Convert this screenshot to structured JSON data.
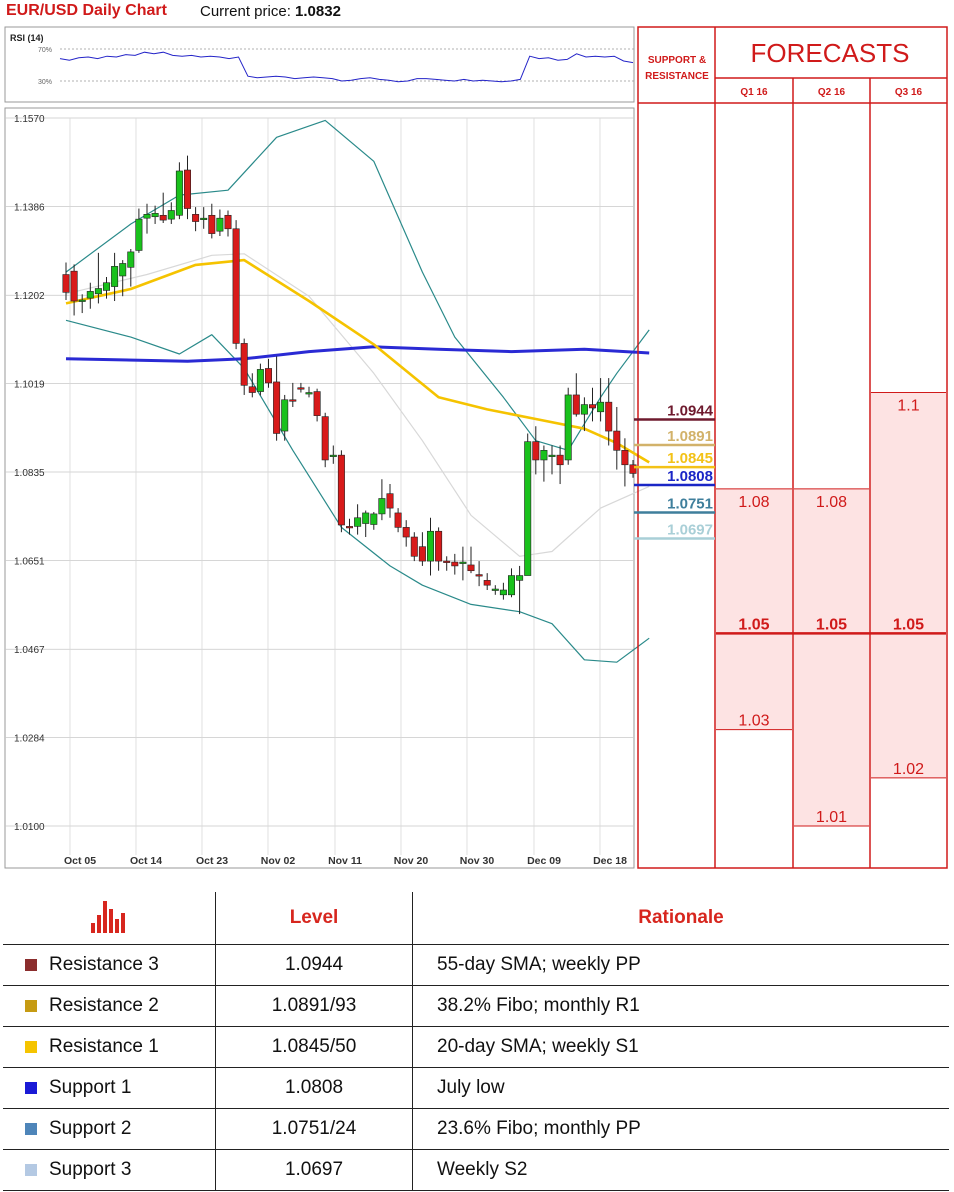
{
  "header": {
    "title": "EUR/USD Daily Chart",
    "price_label": "Current price:",
    "price_value": "1.0832"
  },
  "chart_data": {
    "type": "candlestick",
    "rsi": {
      "label": "RSI (14)",
      "levels": [
        "70%",
        "30%"
      ],
      "values": [
        58,
        56,
        59,
        60,
        58,
        61,
        60,
        63,
        62,
        66,
        64,
        66,
        62,
        61,
        62,
        60,
        61,
        60,
        58,
        60,
        36,
        34,
        35,
        36,
        35,
        33,
        34,
        35,
        34,
        33,
        30,
        31,
        33,
        34,
        32,
        31,
        29,
        30,
        33,
        33,
        32,
        31,
        30,
        32,
        30,
        31,
        30,
        29,
        30,
        32,
        61,
        58,
        59,
        56,
        57,
        64,
        60,
        61,
        60,
        61,
        55,
        53
      ]
    },
    "y_ticks": [
      "1.1570",
      "1.1386",
      "1.1202",
      "1.1019",
      "1.0835",
      "1.0651",
      "1.0467",
      "1.0284",
      "1.0100"
    ],
    "ylim": [
      1.01,
      1.157
    ],
    "x_ticks": [
      "Oct 05",
      "Oct 14",
      "Oct 23",
      "Nov 02",
      "Nov 11",
      "Nov 20",
      "Nov 30",
      "Dec 09",
      "Dec 18"
    ],
    "candles": [
      [
        1.1245,
        1.127,
        1.1192,
        1.1208
      ],
      [
        1.1252,
        1.1266,
        1.116,
        1.119
      ],
      [
        1.119,
        1.1204,
        1.1165,
        1.1192
      ],
      [
        1.1196,
        1.1228,
        1.1174,
        1.121
      ],
      [
        1.1205,
        1.129,
        1.1185,
        1.1216
      ],
      [
        1.1212,
        1.124,
        1.1195,
        1.1228
      ],
      [
        1.122,
        1.129,
        1.119,
        1.1262
      ],
      [
        1.1242,
        1.1275,
        1.12,
        1.1268
      ],
      [
        1.126,
        1.1298,
        1.122,
        1.1292
      ],
      [
        1.1295,
        1.1382,
        1.129,
        1.136
      ],
      [
        1.1362,
        1.1392,
        1.133,
        1.137
      ],
      [
        1.1365,
        1.1388,
        1.135,
        1.1372
      ],
      [
        1.1368,
        1.1415,
        1.1352,
        1.1358
      ],
      [
        1.136,
        1.1395,
        1.135,
        1.1378
      ],
      [
        1.1368,
        1.1478,
        1.136,
        1.146
      ],
      [
        1.1462,
        1.1492,
        1.136,
        1.1382
      ],
      [
        1.137,
        1.1385,
        1.1335,
        1.1355
      ],
      [
        1.136,
        1.1385,
        1.134,
        1.1362
      ],
      [
        1.1368,
        1.1392,
        1.132,
        1.133
      ],
      [
        1.1335,
        1.138,
        1.1325,
        1.1362
      ],
      [
        1.1368,
        1.1378,
        1.1324,
        1.134
      ],
      [
        1.134,
        1.1358,
        1.109,
        1.1102
      ],
      [
        1.1102,
        1.1112,
        1.0995,
        1.1015
      ],
      [
        1.1012,
        1.104,
        1.099,
        1.1
      ],
      [
        1.1002,
        1.106,
        1.0994,
        1.1048
      ],
      [
        1.105,
        1.107,
        1.101,
        1.102
      ],
      [
        1.1022,
        1.1075,
        1.09,
        1.0915
      ],
      [
        1.092,
        1.0995,
        1.09,
        1.0985
      ],
      [
        1.0985,
        1.102,
        1.097,
        1.0982
      ],
      [
        1.101,
        1.102,
        1.1,
        1.1008
      ],
      [
        1.0998,
        1.1012,
        1.099,
        1.1
      ],
      [
        1.1002,
        1.1008,
        1.094,
        1.0952
      ],
      [
        1.095,
        1.0958,
        1.0845,
        1.086
      ],
      [
        1.087,
        1.089,
        1.0852,
        1.087
      ],
      [
        1.087,
        1.088,
        1.071,
        1.0725
      ],
      [
        1.0722,
        1.0738,
        1.0705,
        1.072
      ],
      [
        1.0722,
        1.0768,
        1.0705,
        1.074
      ],
      [
        1.0728,
        1.0755,
        1.07,
        1.075
      ],
      [
        1.0726,
        1.0752,
        1.0715,
        1.0748
      ],
      [
        1.0748,
        1.082,
        1.0735,
        1.078
      ],
      [
        1.079,
        1.081,
        1.074,
        1.076
      ],
      [
        1.075,
        1.076,
        1.071,
        1.072
      ],
      [
        1.072,
        1.0735,
        1.068,
        1.07
      ],
      [
        1.07,
        1.071,
        1.065,
        1.066
      ],
      [
        1.068,
        1.071,
        1.064,
        1.065
      ],
      [
        1.065,
        1.074,
        1.062,
        1.0712
      ],
      [
        1.0712,
        1.072,
        1.063,
        1.065
      ],
      [
        1.065,
        1.066,
        1.063,
        1.0648
      ],
      [
        1.0648,
        1.0665,
        1.0622,
        1.064
      ],
      [
        1.0645,
        1.068,
        1.061,
        1.0648
      ],
      [
        1.0642,
        1.068,
        1.0625,
        1.063
      ],
      [
        1.0622,
        1.065,
        1.0598,
        1.062
      ],
      [
        1.061,
        1.0625,
        1.059,
        1.06
      ],
      [
        1.0592,
        1.06,
        1.058,
        1.0592
      ],
      [
        1.058,
        1.0605,
        1.057,
        1.059
      ],
      [
        1.058,
        1.0635,
        1.0575,
        1.062
      ],
      [
        1.061,
        1.064,
        1.054,
        1.062
      ],
      [
        1.062,
        1.0915,
        1.062,
        1.0898
      ],
      [
        1.0898,
        1.093,
        1.083,
        1.086
      ],
      [
        1.086,
        1.089,
        1.0815,
        1.088
      ],
      [
        1.087,
        1.089,
        1.083,
        1.087
      ],
      [
        1.087,
        1.089,
        1.081,
        1.085
      ],
      [
        1.086,
        1.101,
        1.085,
        1.0995
      ],
      [
        1.0995,
        1.104,
        1.095,
        1.0955
      ],
      [
        1.0955,
        1.099,
        1.092,
        1.0975
      ],
      [
        1.0975,
        1.101,
        1.094,
        1.0968
      ],
      [
        1.096,
        1.103,
        1.094,
        1.098
      ],
      [
        1.098,
        1.103,
        1.089,
        1.092
      ],
      [
        1.092,
        1.097,
        1.084,
        1.088
      ],
      [
        1.088,
        1.0905,
        1.0805,
        1.085
      ],
      [
        1.085,
        1.086,
        1.0823,
        1.0832
      ]
    ],
    "sma_yellow": [
      [
        0,
        1.1185
      ],
      [
        8,
        1.1215
      ],
      [
        16,
        1.1265
      ],
      [
        22,
        1.1275
      ],
      [
        30,
        1.119
      ],
      [
        38,
        1.11
      ],
      [
        46,
        1.099
      ],
      [
        52,
        1.0965
      ],
      [
        58,
        1.0945
      ],
      [
        64,
        1.0925
      ],
      [
        68,
        1.0895
      ],
      [
        72,
        1.0855
      ]
    ],
    "sma_blue": [
      [
        0,
        1.107
      ],
      [
        15,
        1.1065
      ],
      [
        22,
        1.107
      ],
      [
        30,
        1.1085
      ],
      [
        38,
        1.1095
      ],
      [
        46,
        1.109
      ],
      [
        55,
        1.1085
      ],
      [
        64,
        1.109
      ],
      [
        72,
        1.1082
      ]
    ],
    "sma_gray": [
      [
        0,
        1.1205
      ],
      [
        10,
        1.1245
      ],
      [
        18,
        1.1285
      ],
      [
        22,
        1.1288
      ],
      [
        30,
        1.12
      ],
      [
        38,
        1.104
      ],
      [
        44,
        1.09
      ],
      [
        50,
        1.0745
      ],
      [
        56,
        1.066
      ],
      [
        60,
        1.067
      ],
      [
        66,
        1.076
      ],
      [
        72,
        1.0805
      ]
    ],
    "bb_upper": [
      [
        0,
        1.125
      ],
      [
        8,
        1.135
      ],
      [
        14,
        1.141
      ],
      [
        20,
        1.142
      ],
      [
        26,
        1.153
      ],
      [
        32,
        1.1565
      ],
      [
        38,
        1.148
      ],
      [
        44,
        1.125
      ],
      [
        48,
        1.1115
      ],
      [
        54,
        1.099
      ],
      [
        58,
        1.09
      ],
      [
        62,
        1.088
      ],
      [
        66,
        1.099
      ],
      [
        68,
        1.104
      ],
      [
        72,
        1.113
      ]
    ],
    "bb_lower": [
      [
        0,
        1.115
      ],
      [
        8,
        1.1115
      ],
      [
        14,
        1.108
      ],
      [
        18,
        1.112
      ],
      [
        22,
        1.105
      ],
      [
        28,
        1.088
      ],
      [
        34,
        1.072
      ],
      [
        40,
        1.064
      ],
      [
        44,
        1.06
      ],
      [
        50,
        1.056
      ],
      [
        56,
        1.0545
      ],
      [
        60,
        1.052
      ],
      [
        64,
        1.0445
      ],
      [
        68,
        1.044
      ],
      [
        72,
        1.049
      ]
    ],
    "levels": [
      {
        "value": "1.0944",
        "price": 1.0944,
        "color": "#6e1a2e",
        "name": "Resistance 3"
      },
      {
        "value": "1.0891",
        "price": 1.0891,
        "color": "#d2b26a",
        "name": "Resistance 2"
      },
      {
        "value": "1.0845",
        "price": 1.0845,
        "color": "#f3c217",
        "name": "Resistance 1"
      },
      {
        "value": "1.0808",
        "price": 1.0808,
        "color": "#1a26c6",
        "name": "Support 1"
      },
      {
        "value": "1.0751",
        "price": 1.0751,
        "color": "#3f7f9c",
        "name": "Support 2"
      },
      {
        "value": "1.0697",
        "price": 1.0697,
        "color": "#a9cfd7",
        "name": "Support 3"
      }
    ],
    "forecasts": [
      {
        "quarter": "Q1 16",
        "high": 1.08,
        "mid": 1.05,
        "low": 1.03,
        "high_label": "1.08",
        "mid_label": "1.05",
        "low_label": "1.03"
      },
      {
        "quarter": "Q2 16",
        "high": 1.08,
        "mid": 1.05,
        "low": 1.01,
        "high_label": "1.08",
        "mid_label": "1.05",
        "low_label": "1.01"
      },
      {
        "quarter": "Q3 16",
        "high": 1.1,
        "mid": 1.05,
        "low": 1.02,
        "high_label": "1.1",
        "mid_label": "1.05",
        "low_label": "1.02"
      }
    ]
  },
  "panel": {
    "sr_title_1": "SUPPORT &",
    "sr_title_2": "RESISTANCE",
    "forecasts_title": "FORECASTS"
  },
  "table": {
    "icon": "bar-chart-icon",
    "col_level": "Level",
    "col_rationale": "Rationale",
    "rows": [
      {
        "name": "Resistance 3",
        "level": "1.0944",
        "rationale": "55-day SMA; weekly PP",
        "color": "#8b2d2d"
      },
      {
        "name": "Resistance 2",
        "level": "1.0891/93",
        "rationale": "38.2% Fibo; monthly R1",
        "color": "#c69b13"
      },
      {
        "name": "Resistance 1",
        "level": "1.0845/50",
        "rationale": "20-day SMA; weekly S1",
        "color": "#f5c400"
      },
      {
        "name": "Support 1",
        "level": "1.0808",
        "rationale": "July low",
        "color": "#1a1ad6"
      },
      {
        "name": "Support 2",
        "level": "1.0751/24",
        "rationale": "23.6% Fibo; monthly PP",
        "color": "#4e85b9"
      },
      {
        "name": "Support 3",
        "level": "1.0697",
        "rationale": "Weekly S2",
        "color": "#b4c9e3"
      }
    ]
  }
}
